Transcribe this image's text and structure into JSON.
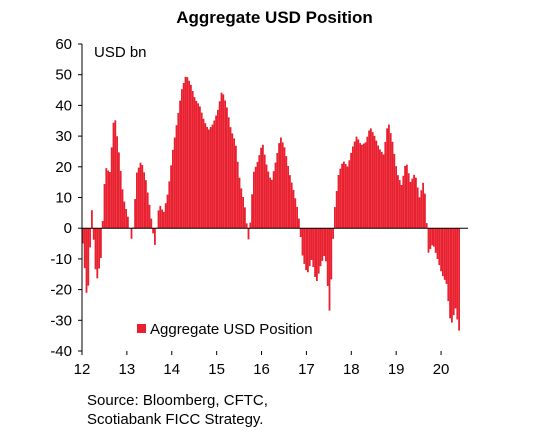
{
  "chart_data": {
    "type": "bar",
    "title": "Aggregate USD Position",
    "unit_label": "USD bn",
    "xlabel": "",
    "ylabel": "",
    "ylim": [
      -40,
      60
    ],
    "yticks": [
      60,
      50,
      40,
      30,
      20,
      10,
      0,
      -10,
      -20,
      -30,
      -40
    ],
    "xlim": [
      2012.0,
      2020.6
    ],
    "xticks": [
      {
        "value": 2012,
        "label": "12"
      },
      {
        "value": 2013,
        "label": "13"
      },
      {
        "value": 2014,
        "label": "14"
      },
      {
        "value": 2015,
        "label": "15"
      },
      {
        "value": 2016,
        "label": "16"
      },
      {
        "value": 2017,
        "label": "17"
      },
      {
        "value": 2018,
        "label": "18"
      },
      {
        "value": 2019,
        "label": "19"
      },
      {
        "value": 2020,
        "label": "20"
      }
    ],
    "legend": {
      "position": "bottom-center",
      "entries": [
        "Aggregate USD Position"
      ]
    },
    "grid": false,
    "series": [
      {
        "name": "Aggregate USD Position",
        "color": "#e8202f",
        "points": [
          [
            2012.0,
            -5
          ],
          [
            2012.1,
            -25
          ],
          [
            2012.2,
            6
          ],
          [
            2012.3,
            -18
          ],
          [
            2012.4,
            -10
          ],
          [
            2012.5,
            20
          ],
          [
            2012.6,
            18
          ],
          [
            2012.7,
            38
          ],
          [
            2012.8,
            25
          ],
          [
            2012.9,
            10
          ],
          [
            2013.0,
            4
          ],
          [
            2013.1,
            -5
          ],
          [
            2013.2,
            18
          ],
          [
            2013.3,
            22
          ],
          [
            2013.4,
            16
          ],
          [
            2013.5,
            6
          ],
          [
            2013.6,
            -6
          ],
          [
            2013.7,
            8
          ],
          [
            2013.8,
            5
          ],
          [
            2013.9,
            12
          ],
          [
            2014.0,
            25
          ],
          [
            2014.1,
            35
          ],
          [
            2014.2,
            45
          ],
          [
            2014.3,
            50
          ],
          [
            2014.4,
            47
          ],
          [
            2014.5,
            42
          ],
          [
            2014.6,
            40
          ],
          [
            2014.7,
            35
          ],
          [
            2014.8,
            32
          ],
          [
            2014.9,
            34
          ],
          [
            2015.0,
            38
          ],
          [
            2015.1,
            45
          ],
          [
            2015.2,
            40
          ],
          [
            2015.3,
            32
          ],
          [
            2015.4,
            28
          ],
          [
            2015.5,
            15
          ],
          [
            2015.6,
            8
          ],
          [
            2015.7,
            -5
          ],
          [
            2015.8,
            18
          ],
          [
            2015.9,
            22
          ],
          [
            2016.0,
            28
          ],
          [
            2016.1,
            20
          ],
          [
            2016.2,
            15
          ],
          [
            2016.3,
            22
          ],
          [
            2016.4,
            30
          ],
          [
            2016.5,
            26
          ],
          [
            2016.6,
            18
          ],
          [
            2016.7,
            12
          ],
          [
            2016.8,
            5
          ],
          [
            2016.9,
            -10
          ],
          [
            2017.0,
            -15
          ],
          [
            2017.1,
            -10
          ],
          [
            2017.2,
            -18
          ],
          [
            2017.3,
            -12
          ],
          [
            2017.4,
            -8
          ],
          [
            2017.5,
            -28
          ],
          [
            2017.6,
            5
          ],
          [
            2017.7,
            18
          ],
          [
            2017.8,
            22
          ],
          [
            2017.9,
            20
          ],
          [
            2018.0,
            26
          ],
          [
            2018.1,
            30
          ],
          [
            2018.2,
            27
          ],
          [
            2018.3,
            28
          ],
          [
            2018.4,
            33
          ],
          [
            2018.5,
            30
          ],
          [
            2018.6,
            26
          ],
          [
            2018.7,
            24
          ],
          [
            2018.8,
            35
          ],
          [
            2018.9,
            28
          ],
          [
            2019.0,
            18
          ],
          [
            2019.1,
            14
          ],
          [
            2019.2,
            22
          ],
          [
            2019.3,
            15
          ],
          [
            2019.4,
            18
          ],
          [
            2019.5,
            10
          ],
          [
            2019.6,
            16
          ],
          [
            2019.7,
            -8
          ],
          [
            2019.8,
            -5
          ],
          [
            2019.9,
            -10
          ],
          [
            2020.0,
            -15
          ],
          [
            2020.1,
            -18
          ],
          [
            2020.2,
            -32
          ],
          [
            2020.3,
            -26
          ],
          [
            2020.4,
            -35
          ]
        ]
      }
    ]
  },
  "source": {
    "line1": "Source: Bloomberg, CFTC,",
    "line2": "Scotiabank FICC  Strategy."
  }
}
